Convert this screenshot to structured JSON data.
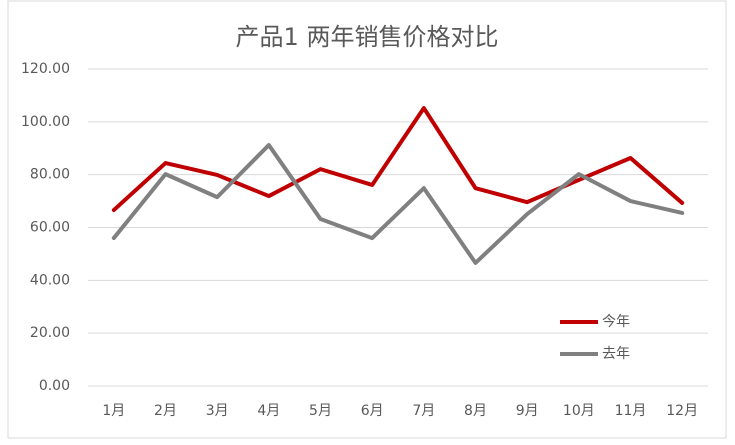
{
  "chart_data": {
    "type": "line",
    "title": "产品1  两年销售价格对比",
    "categories": [
      "1月",
      "2月",
      "3月",
      "4月",
      "5月",
      "6月",
      "7月",
      "8月",
      "9月",
      "10月",
      "11月",
      "12月"
    ],
    "series": [
      {
        "name": "今年",
        "color": "#c00000",
        "values": [
          66.6,
          84.4,
          79.9,
          71.9,
          82.1,
          76.1,
          105.2,
          74.9,
          69.6,
          78.0,
          86.3,
          69.3
        ]
      },
      {
        "name": "去年",
        "color": "#808080",
        "values": [
          56.0,
          80.2,
          71.5,
          91.2,
          63.2,
          56.0,
          74.9,
          46.6,
          65.1,
          80.2,
          70.0,
          65.5
        ]
      }
    ],
    "ylim": [
      0,
      120
    ],
    "yticks": [
      {
        "value": 0,
        "label": "0.00"
      },
      {
        "value": 20,
        "label": "20.00"
      },
      {
        "value": 40,
        "label": "40.00"
      },
      {
        "value": 60,
        "label": "60.00"
      },
      {
        "value": 80,
        "label": "80.00"
      },
      {
        "value": 100,
        "label": "100.00"
      },
      {
        "value": 120,
        "label": "120.00"
      }
    ],
    "grid": true,
    "legend": "lower-right"
  }
}
